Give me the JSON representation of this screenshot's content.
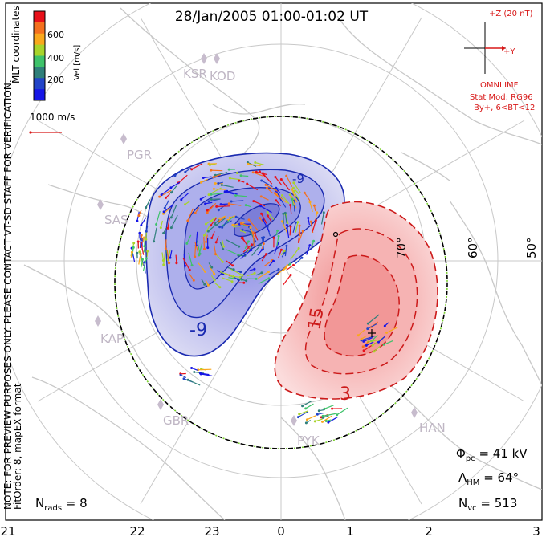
{
  "title": "28/Jan/2005 01:00-01:02 UT",
  "side_note": {
    "line1": "NOTE: FOR PREVIEW PURPOSES ONLY. PLEASE CONTACT VT-SD STAFF FOR VERIFICATION.",
    "line2": "FitOrder: 8, mapEX format"
  },
  "coord_label": "MLT coordinates",
  "colorbar": {
    "label": "Vel [m/s]",
    "ticks": [
      "600",
      "400",
      "200"
    ],
    "colors": [
      "#e8101a",
      "#f4701e",
      "#f9a81c",
      "#a8d42b",
      "#3ec26a",
      "#2f7f7a",
      "#2244c8",
      "#1616e6"
    ]
  },
  "reference_vector": {
    "label": "1000 m/s",
    "color": "#d81818"
  },
  "imf": {
    "z_label": "+Z (20 nT)",
    "y_label": "+Y",
    "source": "OMNI IMF",
    "stat_model": "Stat Mod: RG96",
    "condition": "By+, 6<BT<12",
    "color": "#d81818"
  },
  "stations": [
    {
      "code": "KSR",
      "name_id": "station-ksr"
    },
    {
      "code": "KOD",
      "name_id": "station-kod"
    },
    {
      "code": "PGR",
      "name_id": "station-pgr"
    },
    {
      "code": "SAS",
      "name_id": "station-sas"
    },
    {
      "code": "KAP",
      "name_id": "station-kap"
    },
    {
      "code": "GBR",
      "name_id": "station-gbr"
    },
    {
      "code": "PYK",
      "name_id": "station-pyk"
    },
    {
      "code": "HAN",
      "name_id": "station-han"
    }
  ],
  "latitude_labels": [
    "70°",
    "60°",
    "50°"
  ],
  "mlt_ticks": [
    "21",
    "22",
    "23",
    "0",
    "1",
    "2",
    "3"
  ],
  "contour_labels": {
    "dusk_outer": "-9",
    "dusk_top": "-9",
    "dawn_inner": "15",
    "dawn_outer": "3"
  },
  "contour_colors": {
    "negative": "#1a2ab0",
    "positive": "#cc1a1a"
  },
  "stats": {
    "phi_pc_symbol": "Φ",
    "phi_pc_sub": "pc",
    "phi_pc_value": " = 41 kV",
    "lambda_hm_symbol": "Λ",
    "lambda_hm_sub": "HM",
    "lambda_hm_value": " = 64°",
    "n_vc_symbol": "N",
    "n_vc_sub": "vc",
    "n_vc_value": " = 513"
  },
  "nrads": {
    "symbol": "N",
    "sub": "rads",
    "value": " = 8"
  }
}
